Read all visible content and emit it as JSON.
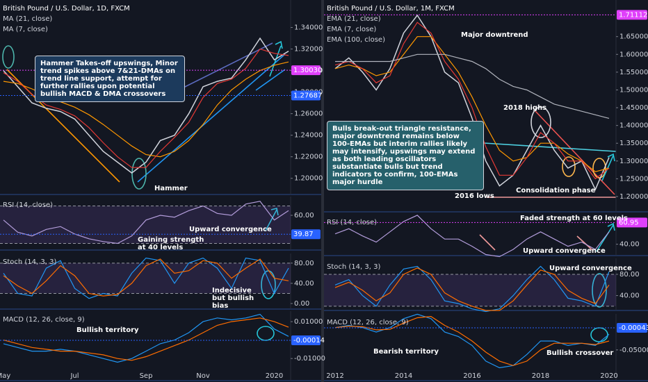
{
  "chart_data": [
    {
      "type": "line",
      "title": "British Pound / U.S. Dollar, 1D, FXCM",
      "categories": [
        "May",
        null,
        null,
        null,
        null,
        "Jul",
        null,
        null,
        null,
        null,
        "Sep",
        null,
        null,
        null,
        "Nov",
        null,
        null,
        null,
        null,
        "2020",
        null
      ],
      "series": [
        {
          "color": "#d1d4dc",
          "values": [
            1.3,
            1.285,
            1.27,
            1.265,
            1.262,
            1.255,
            1.24,
            1.225,
            1.215,
            1.205,
            1.215,
            1.235,
            1.24,
            1.26,
            1.285,
            1.29,
            1.293,
            1.31,
            1.33,
            1.31,
            1.318
          ]
        },
        {
          "name": "MA (21, close)",
          "color": "#ff9800",
          "values": [
            1.29,
            1.288,
            1.283,
            1.277,
            1.271,
            1.266,
            1.259,
            1.25,
            1.24,
            1.23,
            1.222,
            1.22,
            1.225,
            1.235,
            1.25,
            1.268,
            1.282,
            1.292,
            1.3,
            1.305,
            1.308
          ]
        },
        {
          "name": "MA (7, close)",
          "color": "#e53935",
          "values": [
            1.298,
            1.29,
            1.278,
            1.268,
            1.264,
            1.258,
            1.247,
            1.233,
            1.22,
            1.21,
            1.21,
            1.225,
            1.238,
            1.252,
            1.275,
            1.288,
            1.292,
            1.302,
            1.32,
            1.316,
            1.314
          ]
        }
      ],
      "ylim": [
        1.185,
        1.3655
      ],
      "yticks": [
        {
          "value": 1.2,
          "label": "1.20000"
        },
        {
          "value": 1.22,
          "label": "1.22000"
        },
        {
          "value": 1.24,
          "label": "1.24000"
        },
        {
          "value": 1.26,
          "label": "1.26000"
        },
        {
          "value": 1.28,
          "label": "1.28000"
        },
        {
          "value": 1.3,
          "label": "1.30000"
        },
        {
          "value": 1.32,
          "label": "1.32000"
        },
        {
          "value": 1.34,
          "label": "1.34000"
        }
      ],
      "levels": [
        {
          "value": 1.3003,
          "label": "1.30030",
          "color": "#e040fb"
        },
        {
          "value": 1.27687,
          "label": "1.27687",
          "color": "#2962ff"
        }
      ],
      "panels": [
        {
          "name": "RSI (14, close)",
          "ylim": [
            23,
            80
          ],
          "yticks": [
            {
              "value": 60,
              "label": "60.00"
            }
          ],
          "bands": [
            70,
            30
          ],
          "levels": [
            {
              "value": 39.87,
              "label": "39.87",
              "color": "#2962ff"
            }
          ],
          "series": [
            {
              "color": "#b39ddb",
              "values": [
                55,
                42,
                38,
                45,
                48,
                40,
                35,
                32,
                30,
                38,
                55,
                60,
                58,
                65,
                70,
                62,
                60,
                72,
                75,
                55,
                65
              ]
            }
          ]
        },
        {
          "name": "Stoch (14, 3, 3)",
          "ylim": [
            -11,
            99
          ],
          "yticks": [
            {
              "value": 80,
              "label": "80.00"
            },
            {
              "value": 40,
              "label": "40.00"
            },
            {
              "value": 0,
              "label": "0.00"
            }
          ],
          "bands": [
            80,
            20
          ],
          "series": [
            {
              "color": "#2196f3",
              "values": [
                60,
                20,
                15,
                70,
                85,
                30,
                10,
                20,
                15,
                60,
                90,
                85,
                40,
                80,
                90,
                70,
                30,
                90,
                85,
                20,
                70
              ]
            },
            {
              "color": "#ff6d00",
              "values": [
                55,
                35,
                20,
                45,
                75,
                55,
                20,
                15,
                18,
                40,
                75,
                88,
                60,
                65,
                85,
                80,
                50,
                70,
                88,
                50,
                45
              ]
            }
          ]
        },
        {
          "name": "MACD (12, 26, close, 9)",
          "ylim": [
            -0.022,
            0.0157
          ],
          "yticks": [
            {
              "value": 0.01,
              "label": "0.01000"
            },
            {
              "value": -0.01,
              "label": "-0.01000"
            }
          ],
          "levels": [
            {
              "value": -0.00014,
              "label": "-0.00014",
              "color": "#2962ff"
            }
          ],
          "series": [
            {
              "color": "#2196f3",
              "values": [
                -0.002,
                -0.004,
                -0.006,
                -0.006,
                -0.005,
                -0.006,
                -0.008,
                -0.01,
                -0.012,
                -0.01,
                -0.006,
                -0.002,
                0.0,
                0.004,
                0.01,
                0.012,
                0.011,
                0.012,
                0.014,
                0.006,
                0.002
              ]
            },
            {
              "color": "#ff6d00",
              "values": [
                0.0,
                -0.002,
                -0.004,
                -0.005,
                -0.006,
                -0.006,
                -0.007,
                -0.008,
                -0.01,
                -0.011,
                -0.009,
                -0.006,
                -0.003,
                0.0,
                0.004,
                0.008,
                0.01,
                0.011,
                0.012,
                0.01,
                0.007
              ]
            }
          ]
        }
      ],
      "annotations": [
        "Hammer Takes-off upswings, Minor trend spikes above 7&21-DMAs on trend line support, attempt for further rallies upon potential bullish MACD & DMA crossovers",
        "Hammer",
        "Upward convergence",
        "Gaining strength at 40 levels",
        "Indecisive but bullish bias",
        "Bullish territory"
      ]
    },
    {
      "type": "line",
      "title": "British Pound / U.S. Dollar, 1M, FXCM",
      "categories": [
        "2012",
        null,
        null,
        null,
        null,
        "2014",
        null,
        null,
        null,
        null,
        "2016",
        null,
        null,
        null,
        null,
        "2018",
        null,
        null,
        null,
        null,
        "2020"
      ],
      "series": [
        {
          "color": "#d1d4dc",
          "values": [
            1.56,
            1.59,
            1.55,
            1.5,
            1.56,
            1.66,
            1.71,
            1.65,
            1.55,
            1.52,
            1.42,
            1.3,
            1.23,
            1.26,
            1.33,
            1.4,
            1.33,
            1.28,
            1.3,
            1.22,
            1.31
          ]
        },
        {
          "name": "EMA (21, close)",
          "color": "#ff9800",
          "values": [
            1.56,
            1.57,
            1.56,
            1.54,
            1.55,
            1.6,
            1.65,
            1.65,
            1.6,
            1.55,
            1.48,
            1.4,
            1.33,
            1.3,
            1.31,
            1.35,
            1.35,
            1.32,
            1.3,
            1.27,
            1.28
          ]
        },
        {
          "name": "EMA (7, close)",
          "color": "#e53935",
          "values": [
            1.57,
            1.58,
            1.56,
            1.52,
            1.54,
            1.63,
            1.69,
            1.66,
            1.58,
            1.53,
            1.45,
            1.34,
            1.26,
            1.26,
            1.31,
            1.38,
            1.35,
            1.3,
            1.3,
            1.25,
            1.28
          ]
        },
        {
          "name": "EMA (100, close)",
          "color": "#b2b5be",
          "values": [
            1.58,
            1.58,
            1.58,
            1.58,
            1.58,
            1.59,
            1.6,
            1.6,
            1.6,
            1.59,
            1.58,
            1.56,
            1.53,
            1.51,
            1.5,
            1.48,
            1.46,
            1.45,
            1.44,
            1.43,
            1.42
          ]
        }
      ],
      "ylim": [
        1.157,
        1.753
      ],
      "yticks": [
        {
          "value": 1.2,
          "label": "1.20000"
        },
        {
          "value": 1.25,
          "label": "1.25000"
        },
        {
          "value": 1.3,
          "label": "1.30000"
        },
        {
          "value": 1.35,
          "label": "1.35000"
        },
        {
          "value": 1.4,
          "label": "1.40000"
        },
        {
          "value": 1.45,
          "label": "1.45000"
        },
        {
          "value": 1.5,
          "label": "1.50000"
        },
        {
          "value": 1.55,
          "label": "1.55000"
        },
        {
          "value": 1.6,
          "label": "1.60000"
        },
        {
          "value": 1.65,
          "label": "1.65000"
        }
      ],
      "levels": [
        {
          "value": 1.71112,
          "label": "1.71112",
          "color": "#e040fb"
        }
      ],
      "panels": [
        {
          "name": "RSI (14, close)",
          "ylim": [
            29,
            69.3
          ],
          "yticks": [
            {
              "value": 40,
              "label": "40.00"
            }
          ],
          "levels": [
            {
              "value": 60.95,
              "label": "60.95",
              "color": "#e040fb"
            }
          ],
          "series": [
            {
              "color": "#b39ddb",
              "values": [
                50,
                55,
                48,
                42,
                52,
                62,
                68,
                55,
                45,
                45,
                38,
                30,
                28,
                35,
                45,
                52,
                45,
                38,
                42,
                35,
                52
              ]
            }
          ]
        },
        {
          "name": "Stoch (14, 3, 3)",
          "ylim": [
            12,
            110
          ],
          "yticks": [
            {
              "value": 80,
              "label": "80.00"
            },
            {
              "value": 40,
              "label": "40.00"
            }
          ],
          "bands": [
            80,
            20
          ],
          "series": [
            {
              "color": "#2196f3",
              "values": [
                60,
                70,
                40,
                20,
                60,
                90,
                95,
                70,
                30,
                25,
                15,
                10,
                15,
                40,
                70,
                95,
                70,
                35,
                30,
                20,
                85
              ]
            },
            {
              "color": "#ff6d00",
              "values": [
                55,
                65,
                50,
                30,
                45,
                80,
                92,
                80,
                45,
                30,
                20,
                12,
                12,
                30,
                60,
                88,
                80,
                50,
                35,
                25,
                60
              ]
            }
          ]
        },
        {
          "name": "MACD (12, 26, close, 9)",
          "ylim": [
            -0.1187,
            0.0306
          ],
          "yticks": [
            {
              "value": -0.05,
              "label": "-0.05000"
            }
          ],
          "levels": [
            {
              "value": -0.00043,
              "label": "-0.00043",
              "color": "#2962ff"
            }
          ],
          "series": [
            {
              "color": "#2196f3",
              "values": [
                0.0,
                0.005,
                0.0,
                -0.01,
                0.0,
                0.02,
                0.03,
                0.02,
                -0.01,
                -0.02,
                -0.04,
                -0.075,
                -0.09,
                -0.085,
                -0.06,
                -0.03,
                -0.03,
                -0.04,
                -0.035,
                -0.04,
                -0.015
              ]
            },
            {
              "color": "#ff6d00",
              "values": [
                0.0,
                0.003,
                0.002,
                -0.005,
                -0.004,
                0.01,
                0.022,
                0.025,
                0.005,
                -0.01,
                -0.03,
                -0.055,
                -0.075,
                -0.085,
                -0.075,
                -0.05,
                -0.035,
                -0.035,
                -0.035,
                -0.038,
                -0.03
              ]
            }
          ]
        }
      ],
      "annotations": [
        "Major downtrend",
        "2018 highs",
        "Bulls break-out triangle resistance, major downtrend remains below 100-EMAs but interim rallies likely may intensify, upswings may extend as both leading oscillators substantiate bulls but trend indicators to confirm, 100-EMAs major hurdle",
        "2016 lows",
        "Consolidation phase",
        "Faded strength at 60 levels",
        "Upward convergence",
        "Upward convergence",
        "Bearish territory",
        "Bullish crossover"
      ]
    }
  ]
}
